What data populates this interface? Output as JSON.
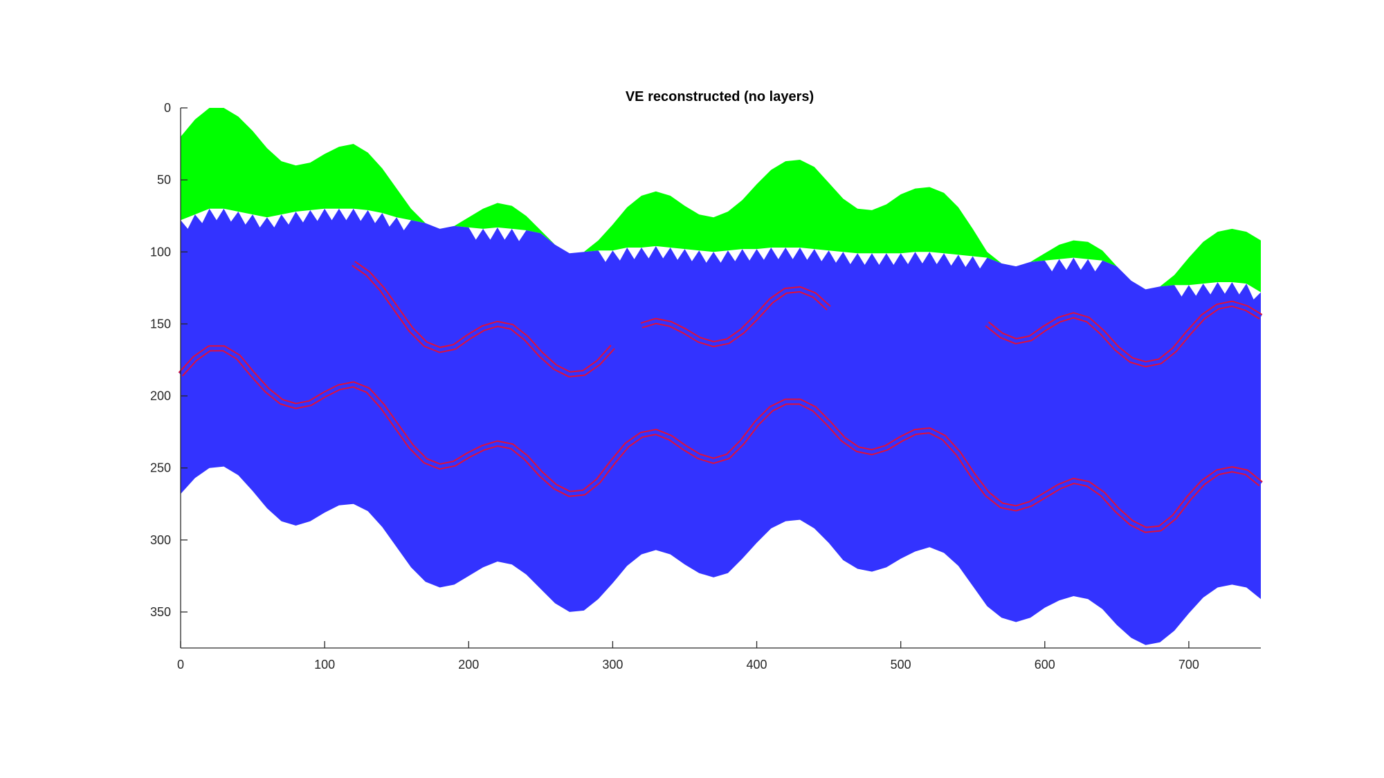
{
  "chart_data": {
    "type": "area",
    "title": "VE reconstructed (no layers)",
    "xlabel": "",
    "ylabel": "",
    "xlim": [
      0,
      750
    ],
    "ylim": [
      0,
      375
    ],
    "y_reversed": true,
    "grid": false,
    "xticks": [
      0,
      100,
      200,
      300,
      400,
      500,
      600,
      700
    ],
    "yticks": [
      0,
      50,
      100,
      150,
      200,
      250,
      300,
      350
    ],
    "colors": {
      "top_fill": "#00ff00",
      "main_fill": "#3333ff",
      "lines": "#e0103a",
      "axes": "#262626",
      "background": "#ffffff"
    },
    "x": [
      0,
      10,
      20,
      30,
      40,
      50,
      60,
      70,
      80,
      90,
      100,
      110,
      120,
      130,
      140,
      150,
      160,
      170,
      180,
      190,
      200,
      210,
      220,
      230,
      240,
      250,
      260,
      270,
      280,
      290,
      300,
      310,
      320,
      330,
      340,
      350,
      360,
      370,
      380,
      390,
      400,
      410,
      420,
      430,
      440,
      450,
      460,
      470,
      480,
      490,
      500,
      510,
      520,
      530,
      540,
      550,
      560,
      570,
      580,
      590,
      600,
      610,
      620,
      630,
      640,
      650,
      660,
      670,
      680,
      690,
      700,
      710,
      720,
      730,
      740,
      750
    ],
    "series": [
      {
        "role": "top_surface",
        "y": [
          20,
          8,
          0,
          0,
          6,
          16,
          28,
          37,
          40,
          38,
          32,
          27,
          25,
          31,
          42,
          56,
          70,
          80,
          84,
          82,
          76,
          70,
          66,
          68,
          75,
          85,
          95,
          101,
          100,
          92,
          81,
          69,
          61,
          58,
          61,
          68,
          74,
          76,
          72,
          64,
          53,
          43,
          37,
          36,
          41,
          52,
          63,
          70,
          71,
          67,
          60,
          56,
          55,
          59,
          69,
          84,
          100,
          108,
          110,
          107,
          101,
          95,
          92,
          93,
          99,
          110,
          120,
          126,
          124,
          116,
          104,
          93,
          86,
          84,
          86,
          92
        ]
      },
      {
        "role": "interface",
        "y": [
          78,
          74,
          70,
          70,
          72,
          74,
          76,
          74,
          72,
          71,
          70,
          70,
          70,
          71,
          73,
          76,
          78,
          80,
          84,
          82,
          83,
          84,
          83,
          84,
          85,
          87,
          95,
          101,
          100,
          99,
          99,
          97,
          97,
          96,
          97,
          98,
          99,
          100,
          99,
          98,
          98,
          97,
          97,
          97,
          98,
          99,
          100,
          101,
          101,
          101,
          101,
          100,
          100,
          101,
          102,
          103,
          104,
          108,
          110,
          107,
          106,
          105,
          104,
          105,
          106,
          110,
          120,
          126,
          124,
          123,
          123,
          122,
          121,
          121,
          122,
          128
        ]
      },
      {
        "role": "bottom_surface",
        "y": [
          268,
          257,
          250,
          249,
          255,
          266,
          278,
          287,
          290,
          287,
          281,
          276,
          275,
          280,
          291,
          305,
          319,
          329,
          333,
          331,
          325,
          319,
          315,
          317,
          324,
          334,
          344,
          350,
          349,
          341,
          330,
          318,
          310,
          307,
          310,
          317,
          323,
          326,
          323,
          313,
          302,
          292,
          287,
          286,
          292,
          302,
          314,
          320,
          322,
          319,
          313,
          308,
          305,
          309,
          318,
          332,
          346,
          354,
          357,
          354,
          347,
          342,
          339,
          341,
          348,
          359,
          368,
          373,
          371,
          363,
          351,
          340,
          333,
          331,
          333,
          341
        ]
      }
    ],
    "red_lines": [
      {
        "name": "",
        "x": [
          120,
          130,
          140,
          150,
          160,
          170,
          180,
          190,
          200,
          210,
          220,
          230,
          240,
          250,
          260,
          270,
          280,
          290,
          300
        ],
        "y": [
          108,
          115,
          126,
          140,
          154,
          164,
          168,
          166,
          159,
          153,
          150,
          152,
          160,
          171,
          180,
          185,
          184,
          177,
          166
        ]
      },
      {
        "name": "",
        "x": [
          0,
          10,
          20,
          30,
          40,
          50,
          60,
          70,
          80,
          90,
          100,
          110,
          120,
          130,
          140,
          150,
          160,
          170,
          180,
          190,
          200,
          210,
          220,
          230,
          240,
          250,
          260,
          270,
          280,
          290,
          300,
          310,
          320,
          330,
          340,
          350,
          360,
          370,
          380,
          390,
          400,
          410,
          420,
          430,
          440,
          450,
          460,
          470,
          480,
          490,
          500,
          510,
          520,
          530,
          540,
          550,
          560,
          570,
          580,
          590,
          600,
          610,
          620,
          630,
          640,
          650,
          660,
          670,
          680,
          690,
          700,
          710,
          720,
          730,
          740,
          750
        ],
        "y": [
          185,
          174,
          167,
          167,
          173,
          185,
          196,
          204,
          207,
          205,
          199,
          194,
          192,
          196,
          207,
          221,
          235,
          245,
          249,
          247,
          241,
          236,
          233,
          235,
          243,
          254,
          263,
          268,
          267,
          259,
          246,
          234,
          227,
          225,
          229,
          236,
          242,
          245,
          242,
          232,
          219,
          209,
          204,
          204,
          209,
          219,
          230,
          237,
          239,
          236,
          230,
          225,
          224,
          229,
          240,
          255,
          268,
          276,
          278,
          275,
          269,
          263,
          259,
          261,
          268,
          279,
          288,
          293,
          292,
          284,
          271,
          260,
          253,
          251,
          253,
          261
        ]
      },
      {
        "name": "",
        "x": [
          320,
          330,
          340,
          350,
          360,
          370,
          380,
          390,
          400,
          410,
          420,
          430,
          440,
          450
        ],
        "y": [
          151,
          148,
          150,
          155,
          161,
          164,
          162,
          155,
          145,
          134,
          127,
          126,
          130,
          139
        ]
      },
      {
        "name": "",
        "x": [
          560,
          570,
          580,
          590,
          600,
          610,
          620,
          630,
          640,
          650,
          660,
          670,
          680,
          690,
          700,
          710,
          720,
          730,
          740,
          750
        ],
        "y": [
          150,
          158,
          162,
          160,
          153,
          147,
          144,
          147,
          156,
          167,
          175,
          178,
          176,
          168,
          156,
          145,
          138,
          136,
          139,
          145
        ]
      }
    ]
  }
}
